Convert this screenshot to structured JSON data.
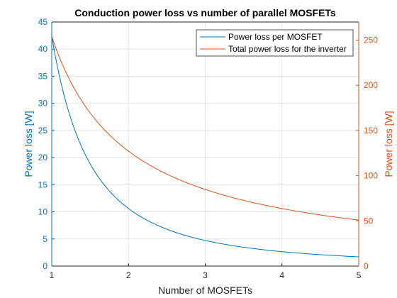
{
  "chart_data": {
    "type": "line",
    "title": "Conduction power loss vs number of parallel MOSFETs",
    "xlabel": "Number of MOSFETs",
    "ylabel_left": "Power loss [W]",
    "ylabel_right": "Power loss [W]",
    "xlim": [
      1,
      5
    ],
    "ylim_left": [
      0,
      45
    ],
    "ylim_right": [
      0,
      270
    ],
    "x_ticks": [
      "1",
      "2",
      "3",
      "4",
      "5"
    ],
    "y_ticks_left": [
      "0",
      "5",
      "10",
      "15",
      "20",
      "25",
      "30",
      "35",
      "40",
      "45"
    ],
    "y_ticks_right": [
      "0",
      "50",
      "100",
      "150",
      "200",
      "250"
    ],
    "grid": true,
    "legend_position": "top-right",
    "colors": {
      "left": "#0072BD",
      "right": "#D95319"
    },
    "series": [
      {
        "name": "Power loss per MOSFET",
        "axis": "left",
        "x": [
          1,
          1.25,
          1.5,
          1.75,
          2,
          2.25,
          2.5,
          2.75,
          3,
          3.25,
          3.5,
          3.75,
          4,
          4.25,
          4.5,
          4.75,
          5
        ],
        "values": [
          42.4,
          27.1,
          18.8,
          13.8,
          10.6,
          8.4,
          6.8,
          5.6,
          4.7,
          4.0,
          3.5,
          3.0,
          2.65,
          2.35,
          2.1,
          1.9,
          1.7
        ]
      },
      {
        "name": "Total power loss for the inverter",
        "axis": "right",
        "x": [
          1,
          1.25,
          1.5,
          1.75,
          2,
          2.25,
          2.5,
          2.75,
          3,
          3.25,
          3.5,
          3.75,
          4,
          4.25,
          4.5,
          4.75,
          5
        ],
        "values": [
          254,
          203.5,
          169.6,
          145.4,
          127.2,
          113.1,
          101.8,
          92.5,
          84.8,
          78.3,
          72.7,
          67.8,
          63.6,
          59.9,
          56.5,
          53.6,
          50.9
        ]
      }
    ]
  }
}
